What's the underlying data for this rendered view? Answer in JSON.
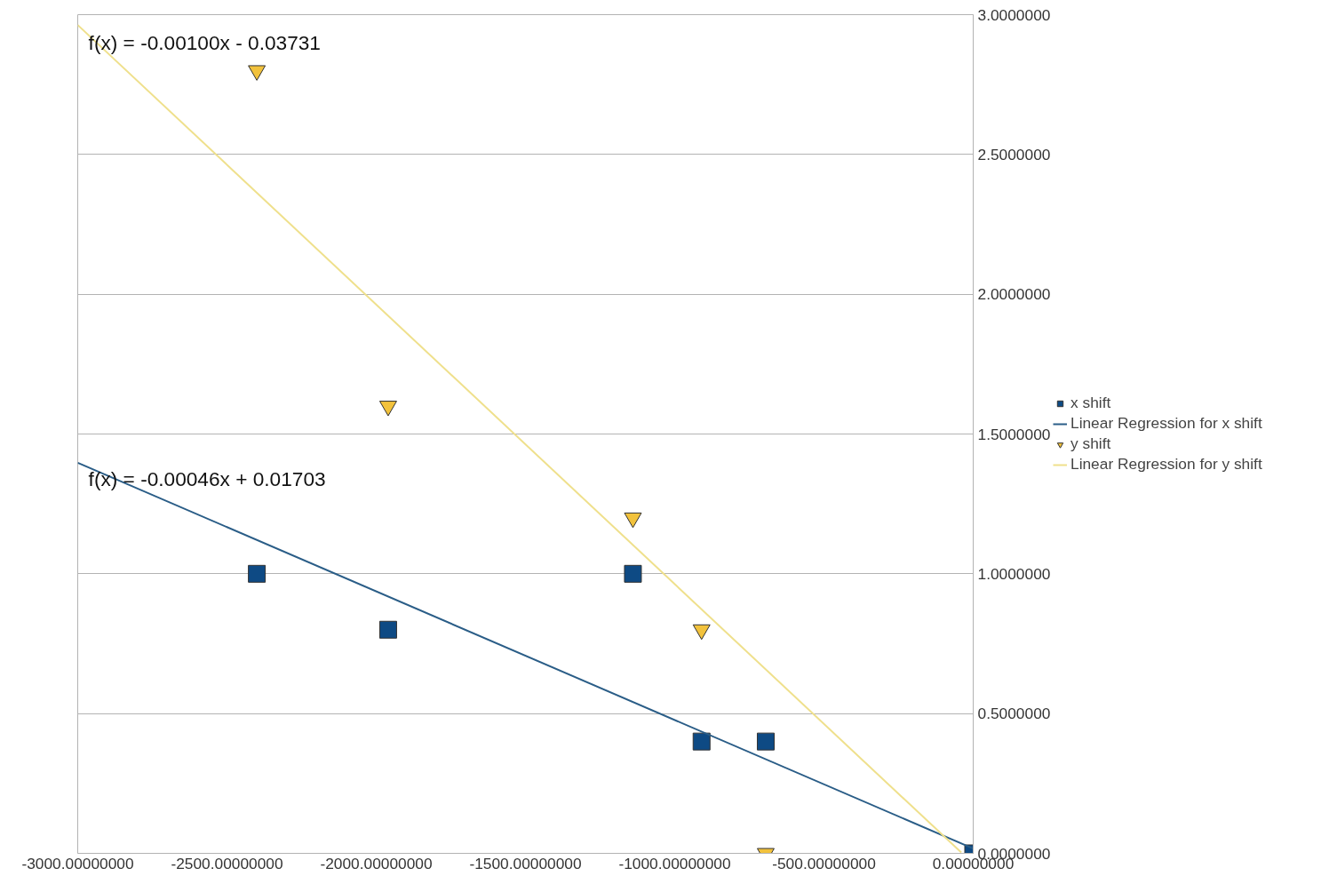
{
  "chart_data": {
    "type": "scatter",
    "xlim": [
      -3000,
      0
    ],
    "ylim": [
      0,
      3
    ],
    "xticks": [
      {
        "value": -3000,
        "label": "-3000.00000000"
      },
      {
        "value": -2500,
        "label": "-2500.00000000"
      },
      {
        "value": -2000,
        "label": "-2000.00000000"
      },
      {
        "value": -1500,
        "label": "-1500.00000000"
      },
      {
        "value": -1000,
        "label": "-1000.00000000"
      },
      {
        "value": -500,
        "label": "-500.00000000"
      },
      {
        "value": 0,
        "label": "0.00000000"
      }
    ],
    "yticks": [
      {
        "value": 0,
        "label": "0.0000000"
      },
      {
        "value": 0.5,
        "label": "0.5000000"
      },
      {
        "value": 1,
        "label": "1.0000000"
      },
      {
        "value": 1.5,
        "label": "1.5000000"
      },
      {
        "value": 2,
        "label": "2.0000000"
      },
      {
        "value": 2.5,
        "label": "2.5000000"
      },
      {
        "value": 3,
        "label": "3.0000000"
      }
    ],
    "grid": "y",
    "legend": "right",
    "series": [
      {
        "name": "x shift",
        "marker": "square",
        "color": "#0e4a84",
        "x": [
          -2400,
          -1960,
          -1140,
          -910,
          -695,
          0
        ],
        "values": [
          1.0,
          0.8,
          1.0,
          0.4,
          0.4,
          0.0
        ]
      },
      {
        "name": "Linear Regression for x shift",
        "type": "line",
        "color": "#2a5d87",
        "x": [
          -3000,
          0
        ],
        "values": [
          1.397,
          0.017
        ]
      },
      {
        "name": "y shift",
        "marker": "triangle",
        "color": "#f2c23c",
        "x": [
          -2400,
          -1960,
          -1140,
          -910,
          -695
        ],
        "values": [
          2.8,
          1.6,
          1.2,
          0.8,
          0.0
        ]
      },
      {
        "name": "Linear Regression for y shift",
        "type": "line",
        "color": "#efe08c",
        "x": [
          -3000,
          -40
        ],
        "values": [
          2.963,
          0.003
        ]
      }
    ],
    "annotations": [
      "f(x) = -0.00100x - 0.03731",
      "f(x) = -0.00046x + 0.01703"
    ]
  }
}
